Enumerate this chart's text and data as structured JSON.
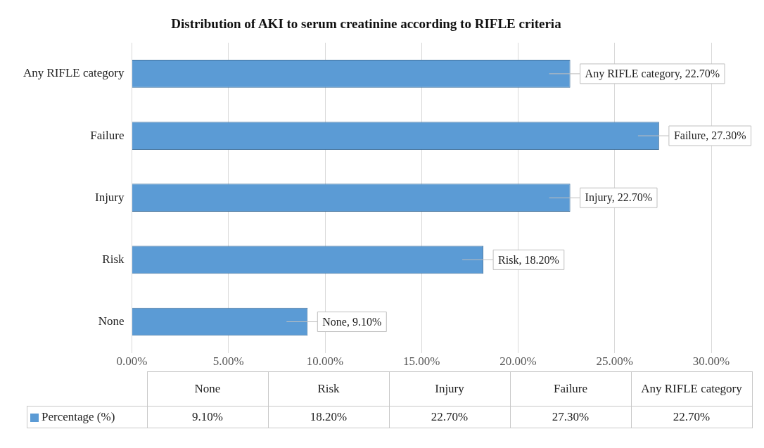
{
  "chart_data": {
    "type": "bar",
    "orientation": "horizontal",
    "title": "Distribution of AKI to serum creatinine according to RIFLE criteria",
    "categories": [
      "Any RIFLE category",
      "Failure",
      "Injury",
      "Risk",
      "None"
    ],
    "series": [
      {
        "name": "Percentage (%)",
        "color": "#5b9bd5",
        "values": [
          22.7,
          27.3,
          22.7,
          18.2,
          9.1
        ],
        "value_labels": [
          "Any RIFLE category, 22.70%",
          "Failure, 27.30%",
          "Injury, 22.70%",
          "Risk, 18.20%",
          "None, 9.10%"
        ]
      }
    ],
    "annotations": [
      "9.10%",
      "18.20%",
      "22.70%",
      "27.30%",
      "22.70%"
    ],
    "xlim": [
      0,
      30
    ],
    "xticks": [
      {
        "value": 0,
        "label": "0.00%"
      },
      {
        "value": 5,
        "label": "5.00%"
      },
      {
        "value": 10,
        "label": "10.00%"
      },
      {
        "value": 15,
        "label": "15.00%"
      },
      {
        "value": 20,
        "label": "20.00%"
      },
      {
        "value": 25,
        "label": "25.00%"
      },
      {
        "value": 30,
        "label": "30.00%"
      }
    ],
    "grid": "x",
    "legend": "bottom"
  }
}
